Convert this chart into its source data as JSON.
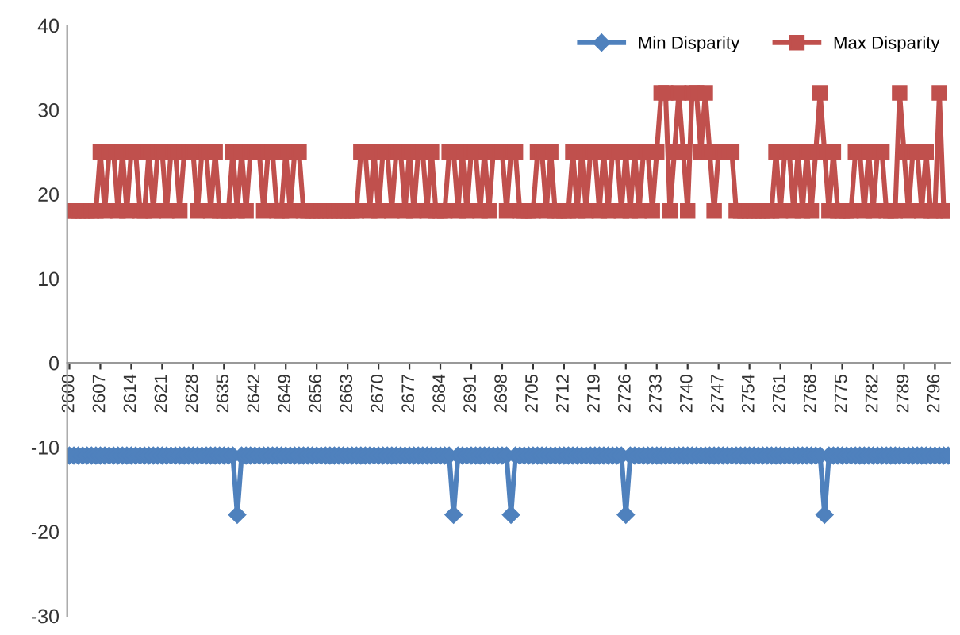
{
  "chart_data": {
    "type": "line",
    "categories": [
      "2600",
      null,
      null,
      null,
      null,
      null,
      null,
      "2607",
      null,
      null,
      null,
      null,
      null,
      null,
      "2614",
      null,
      null,
      null,
      null,
      null,
      null,
      "2621",
      null,
      null,
      null,
      null,
      null,
      null,
      "2628",
      null,
      null,
      null,
      null,
      null,
      null,
      "2635",
      null,
      null,
      null,
      null,
      null,
      null,
      "2642",
      null,
      null,
      null,
      null,
      null,
      null,
      "2649",
      null,
      null,
      null,
      null,
      null,
      null,
      "2656",
      null,
      null,
      null,
      null,
      null,
      null,
      "2663",
      null,
      null,
      null,
      null,
      null,
      null,
      "2670",
      null,
      null,
      null,
      null,
      null,
      null,
      "2677",
      null,
      null,
      null,
      null,
      null,
      null,
      "2684",
      null,
      null,
      null,
      null,
      null,
      null,
      "2691",
      null,
      null,
      null,
      null,
      null,
      null,
      "2698",
      null,
      null,
      null,
      null,
      null,
      null,
      "2705",
      null,
      null,
      null,
      null,
      null,
      null,
      "2712",
      null,
      null,
      null,
      null,
      null,
      null,
      "2719",
      null,
      null,
      null,
      null,
      null,
      null,
      "2726",
      null,
      null,
      null,
      null,
      null,
      null,
      "2733",
      null,
      null,
      null,
      null,
      null,
      null,
      "2740",
      null,
      null,
      null,
      null,
      null,
      null,
      "2747",
      null,
      null,
      null,
      null,
      null,
      null,
      "2754",
      null,
      null,
      null,
      null,
      null,
      null,
      "2761",
      null,
      null,
      null,
      null,
      null,
      null,
      "2768",
      null,
      null,
      null,
      null,
      null,
      null,
      "2775",
      null,
      null,
      null,
      null,
      null,
      null,
      "2782",
      null,
      null,
      null,
      null,
      null,
      null,
      "2789",
      null,
      null,
      null,
      null,
      null,
      null,
      "2796",
      null,
      null,
      null
    ],
    "series": [
      {
        "name": "Min Disparity",
        "color": "#4f81bd",
        "marker": "diamond",
        "values": [
          -11,
          -11,
          -11,
          -11,
          -11,
          -11,
          -11,
          -11,
          -11,
          -11,
          -11,
          -11,
          -11,
          -11,
          -11,
          -11,
          -11,
          -11,
          -11,
          -11,
          -11,
          -11,
          -11,
          -11,
          -11,
          -11,
          -11,
          -11,
          -11,
          -11,
          -11,
          -11,
          -11,
          -11,
          -11,
          -11,
          -11,
          -11,
          -18,
          -11,
          -11,
          -11,
          -11,
          -11,
          -11,
          -11,
          -11,
          -11,
          -11,
          -11,
          -11,
          -11,
          -11,
          -11,
          -11,
          -11,
          -11,
          -11,
          -11,
          -11,
          -11,
          -11,
          -11,
          -11,
          -11,
          -11,
          -11,
          -11,
          -11,
          -11,
          -11,
          -11,
          -11,
          -11,
          -11,
          -11,
          -11,
          -11,
          -11,
          -11,
          -11,
          -11,
          -11,
          -11,
          -11,
          -11,
          -11,
          -18,
          -11,
          -11,
          -11,
          -11,
          -11,
          -11,
          -11,
          -11,
          -11,
          -11,
          -11,
          -11,
          -18,
          -11,
          -11,
          -11,
          -11,
          -11,
          -11,
          -11,
          -11,
          -11,
          -11,
          -11,
          -11,
          -11,
          -11,
          -11,
          -11,
          -11,
          -11,
          -11,
          -11,
          -11,
          -11,
          -11,
          -11,
          -11,
          -18,
          -11,
          -11,
          -11,
          -11,
          -11,
          -11,
          -11,
          -11,
          -11,
          -11,
          -11,
          -11,
          -11,
          -11,
          -11,
          -11,
          -11,
          -11,
          -11,
          -11,
          -11,
          -11,
          -11,
          -11,
          -11,
          -11,
          -11,
          -11,
          -11,
          -11,
          -11,
          -11,
          -11,
          -11,
          -11,
          -11,
          -11,
          -11,
          -11,
          -11,
          -11,
          -11,
          -11,
          -11,
          -18,
          -11,
          -11,
          -11,
          -11,
          -11,
          -11,
          -11,
          -11,
          -11,
          -11,
          -11,
          -11,
          -11,
          -11,
          -11,
          -11,
          -11,
          -11,
          -11,
          -11,
          -11,
          -11,
          -11,
          -11,
          -11,
          -11,
          -11,
          -11
        ]
      },
      {
        "name": "Max Disparity",
        "color": "#c0504d",
        "marker": "square",
        "values": [
          18,
          18,
          18,
          18,
          18,
          18,
          18,
          25,
          18,
          25,
          25,
          18,
          25,
          18,
          25,
          25,
          18,
          18,
          25,
          18,
          25,
          25,
          18,
          25,
          25,
          18,
          25,
          25,
          25,
          18,
          25,
          25,
          18,
          25,
          18,
          18,
          18,
          25,
          18,
          25,
          18,
          25,
          25,
          25,
          18,
          25,
          25,
          18,
          18,
          25,
          18,
          25,
          25,
          18,
          18,
          18,
          18,
          18,
          18,
          18,
          18,
          18,
          18,
          18,
          18,
          18,
          25,
          25,
          18,
          25,
          18,
          25,
          25,
          18,
          25,
          25,
          18,
          25,
          18,
          25,
          25,
          18,
          25,
          18,
          18,
          18,
          25,
          25,
          18,
          25,
          18,
          25,
          25,
          18,
          25,
          18,
          25,
          25,
          25,
          18,
          25,
          25,
          18,
          18,
          18,
          18,
          25,
          25,
          18,
          25,
          18,
          18,
          18,
          18,
          25,
          18,
          25,
          18,
          25,
          25,
          18,
          25,
          18,
          25,
          25,
          18,
          25,
          18,
          25,
          18,
          25,
          25,
          18,
          25,
          32,
          32,
          18,
          25,
          32,
          25,
          18,
          32,
          32,
          25,
          32,
          25,
          18,
          25,
          25,
          25,
          25,
          18,
          18,
          18,
          18,
          18,
          18,
          18,
          18,
          18,
          25,
          18,
          25,
          25,
          18,
          25,
          18,
          25,
          18,
          25,
          32,
          25,
          18,
          25,
          18,
          18,
          18,
          18,
          25,
          25,
          18,
          25,
          18,
          25,
          25,
          18,
          18,
          18,
          32,
          25,
          18,
          25,
          25,
          18,
          25,
          18,
          18,
          32,
          18,
          18
        ]
      }
    ],
    "ylim": [
      -30,
      40
    ],
    "yticks": [
      -30,
      -20,
      -10,
      0,
      10,
      20,
      30,
      40
    ],
    "grid": false,
    "legend": "top right"
  }
}
